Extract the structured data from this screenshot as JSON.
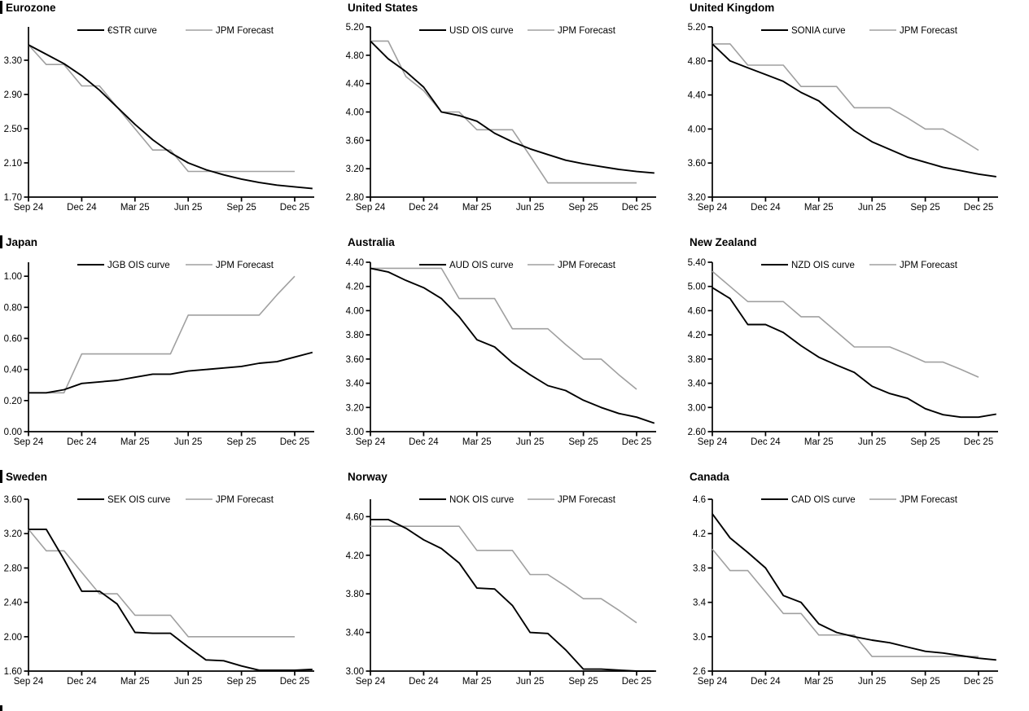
{
  "page": {
    "background": "#ffffff"
  },
  "colors": {
    "ois_line": "#000000",
    "forecast_line": "#a0a0a0",
    "axis": "#000000",
    "text": "#000000"
  },
  "x_axis": {
    "tick_labels": [
      "Sep 24",
      "Dec 24",
      "Mar 25",
      "Jun 25",
      "Sep 25",
      "Dec 25"
    ],
    "tick_months": [
      0,
      3,
      6,
      9,
      12,
      15
    ]
  },
  "legend_forecast_label": "JPM Forecast",
  "chart_data": [
    {
      "type": "line",
      "title": "Eurozone",
      "title_bar": true,
      "row": 0,
      "col": 0,
      "y_axis": {
        "min": 1.7,
        "max": 3.69,
        "tick_labels": [
          "3.30",
          "2.90",
          "2.50",
          "2.10",
          "1.70"
        ],
        "tick_values": [
          3.3,
          2.9,
          2.5,
          2.1,
          1.7
        ]
      },
      "series": [
        {
          "name": "€STR curve",
          "role": "ois",
          "values": [
            3.48,
            3.37,
            3.26,
            3.12,
            2.95,
            2.75,
            2.55,
            2.37,
            2.22,
            2.1,
            2.02,
            1.96,
            1.91,
            1.87,
            1.84,
            1.82,
            1.8
          ]
        },
        {
          "name": "JPM Forecast",
          "role": "forecast",
          "values": [
            3.48,
            3.25,
            3.25,
            3.0,
            3.0,
            2.75,
            2.5,
            2.25,
            2.25,
            2.0,
            2.0,
            2.0,
            2.0,
            2.0,
            2.0,
            2.0
          ]
        }
      ]
    },
    {
      "type": "line",
      "title": "United States",
      "title_bar": false,
      "row": 0,
      "col": 1,
      "y_axis": {
        "min": 2.8,
        "max": 5.2,
        "tick_labels": [
          "5.20",
          "4.80",
          "4.40",
          "4.00",
          "3.60",
          "3.20",
          "2.80"
        ],
        "tick_values": [
          5.2,
          4.8,
          4.4,
          4.0,
          3.6,
          3.2,
          2.8
        ]
      },
      "series": [
        {
          "name": "USD OIS curve",
          "role": "ois",
          "values": [
            5.0,
            4.75,
            4.57,
            4.35,
            4.0,
            3.95,
            3.87,
            3.7,
            3.58,
            3.48,
            3.4,
            3.32,
            3.27,
            3.23,
            3.19,
            3.16,
            3.14
          ]
        },
        {
          "name": "JPM Forecast",
          "role": "forecast",
          "values": [
            5.0,
            5.0,
            4.5,
            4.3,
            4.0,
            4.0,
            3.75,
            3.75,
            3.75,
            3.38,
            3.0,
            3.0,
            3.0,
            3.0,
            3.0,
            3.0
          ]
        }
      ]
    },
    {
      "type": "line",
      "title": "United Kingdom",
      "title_bar": false,
      "row": 0,
      "col": 2,
      "y_axis": {
        "min": 3.2,
        "max": 5.2,
        "tick_labels": [
          "5.20",
          "4.80",
          "4.40",
          "4.00",
          "3.60",
          "3.20"
        ],
        "tick_values": [
          5.2,
          4.8,
          4.4,
          4.0,
          3.6,
          3.2
        ]
      },
      "series": [
        {
          "name": "SONIA curve",
          "role": "ois",
          "values": [
            5.0,
            4.8,
            4.72,
            4.64,
            4.56,
            4.43,
            4.33,
            4.15,
            3.98,
            3.85,
            3.76,
            3.67,
            3.61,
            3.55,
            3.51,
            3.47,
            3.44
          ]
        },
        {
          "name": "JPM Forecast",
          "role": "forecast",
          "values": [
            5.0,
            5.0,
            4.75,
            4.75,
            4.75,
            4.5,
            4.5,
            4.5,
            4.25,
            4.25,
            4.25,
            4.13,
            4.0,
            4.0,
            3.88,
            3.75
          ]
        }
      ]
    },
    {
      "type": "line",
      "title": "Japan",
      "title_bar": true,
      "row": 1,
      "col": 0,
      "y_axis": {
        "min": 0.0,
        "max": 1.09,
        "tick_labels": [
          "1.00",
          "0.80",
          "0.60",
          "0.40",
          "0.20",
          "0.00"
        ],
        "tick_values": [
          1.0,
          0.8,
          0.6,
          0.4,
          0.2,
          0.0
        ]
      },
      "series": [
        {
          "name": "JGB OIS curve",
          "role": "ois",
          "values": [
            0.25,
            0.25,
            0.27,
            0.31,
            0.32,
            0.33,
            0.35,
            0.37,
            0.37,
            0.39,
            0.4,
            0.41,
            0.42,
            0.44,
            0.45,
            0.48,
            0.51
          ]
        },
        {
          "name": "JPM Forecast",
          "role": "forecast",
          "values": [
            0.25,
            0.25,
            0.25,
            0.5,
            0.5,
            0.5,
            0.5,
            0.5,
            0.5,
            0.75,
            0.75,
            0.75,
            0.75,
            0.75,
            0.88,
            1.0
          ]
        }
      ]
    },
    {
      "type": "line",
      "title": "Australia",
      "title_bar": false,
      "row": 1,
      "col": 1,
      "y_axis": {
        "min": 3.0,
        "max": 4.4,
        "tick_labels": [
          "4.40",
          "4.20",
          "4.00",
          "3.80",
          "3.60",
          "3.40",
          "3.20",
          "3.00"
        ],
        "tick_values": [
          4.4,
          4.2,
          4.0,
          3.8,
          3.6,
          3.4,
          3.2,
          3.0
        ]
      },
      "series": [
        {
          "name": "AUD OIS curve",
          "role": "ois",
          "values": [
            4.35,
            4.32,
            4.25,
            4.19,
            4.1,
            3.95,
            3.76,
            3.7,
            3.57,
            3.47,
            3.38,
            3.34,
            3.26,
            3.2,
            3.15,
            3.12,
            3.07
          ]
        },
        {
          "name": "JPM Forecast",
          "role": "forecast",
          "values": [
            4.35,
            4.35,
            4.35,
            4.35,
            4.35,
            4.1,
            4.1,
            4.1,
            3.85,
            3.85,
            3.85,
            3.72,
            3.6,
            3.6,
            3.47,
            3.35
          ]
        }
      ]
    },
    {
      "type": "line",
      "title": "New Zealand",
      "title_bar": false,
      "row": 1,
      "col": 2,
      "y_axis": {
        "min": 2.6,
        "max": 5.4,
        "tick_labels": [
          "5.40",
          "5.00",
          "4.60",
          "4.20",
          "3.80",
          "3.40",
          "3.00",
          "2.60"
        ],
        "tick_values": [
          5.4,
          5.0,
          4.6,
          4.2,
          3.8,
          3.4,
          3.0,
          2.6
        ]
      },
      "series": [
        {
          "name": "NZD OIS curve",
          "role": "ois",
          "values": [
            4.98,
            4.8,
            4.37,
            4.37,
            4.24,
            4.02,
            3.83,
            3.7,
            3.58,
            3.35,
            3.23,
            3.15,
            2.98,
            2.88,
            2.84,
            2.84,
            2.89
          ]
        },
        {
          "name": "JPM Forecast",
          "role": "forecast",
          "values": [
            5.25,
            5.0,
            4.75,
            4.75,
            4.75,
            4.5,
            4.5,
            4.25,
            4.0,
            4.0,
            4.0,
            3.88,
            3.75,
            3.75,
            3.63,
            3.5
          ]
        }
      ]
    },
    {
      "type": "line",
      "title": "Sweden",
      "title_bar": true,
      "row": 2,
      "col": 0,
      "y_axis": {
        "min": 1.6,
        "max": 3.6,
        "tick_labels": [
          "3.60",
          "3.20",
          "2.80",
          "2.40",
          "2.00",
          "1.60"
        ],
        "tick_values": [
          3.6,
          3.2,
          2.8,
          2.4,
          2.0,
          1.6
        ]
      },
      "series": [
        {
          "name": "SEK OIS curve",
          "role": "ois",
          "values": [
            3.25,
            3.25,
            2.9,
            2.53,
            2.53,
            2.38,
            2.05,
            2.04,
            2.04,
            1.88,
            1.73,
            1.72,
            1.66,
            1.61,
            1.61,
            1.61,
            1.62
          ]
        },
        {
          "name": "JPM Forecast",
          "role": "forecast",
          "values": [
            3.25,
            3.0,
            3.0,
            2.75,
            2.5,
            2.5,
            2.25,
            2.25,
            2.25,
            2.0,
            2.0,
            2.0,
            2.0,
            2.0,
            2.0,
            2.0
          ]
        }
      ]
    },
    {
      "type": "line",
      "title": "Norway",
      "title_bar": false,
      "row": 2,
      "col": 1,
      "y_axis": {
        "min": 3.0,
        "max": 4.78,
        "tick_labels": [
          "4.60",
          "4.20",
          "3.80",
          "3.40",
          "3.00"
        ],
        "tick_values": [
          4.6,
          4.2,
          3.8,
          3.4,
          3.0
        ]
      },
      "series": [
        {
          "name": "NOK OIS curve",
          "role": "ois",
          "values": [
            4.57,
            4.57,
            4.48,
            4.36,
            4.27,
            4.12,
            3.86,
            3.85,
            3.68,
            3.4,
            3.39,
            3.22,
            3.02,
            3.02,
            3.01,
            3.0,
            3.0
          ]
        },
        {
          "name": "JPM Forecast",
          "role": "forecast",
          "values": [
            4.5,
            4.5,
            4.5,
            4.5,
            4.5,
            4.5,
            4.25,
            4.25,
            4.25,
            4.0,
            4.0,
            3.88,
            3.75,
            3.75,
            3.63,
            3.5
          ]
        }
      ]
    },
    {
      "type": "line",
      "title": "Canada",
      "title_bar": false,
      "row": 2,
      "col": 2,
      "y_axis": {
        "min": 2.6,
        "max": 4.6,
        "tick_labels": [
          "4.6",
          "4.2",
          "3.8",
          "3.4",
          "3.0",
          "2.6"
        ],
        "tick_values": [
          4.6,
          4.2,
          3.8,
          3.4,
          3.0,
          2.6
        ]
      },
      "series": [
        {
          "name": "CAD OIS curve",
          "role": "ois",
          "values": [
            4.43,
            4.15,
            3.98,
            3.8,
            3.48,
            3.4,
            3.15,
            3.05,
            3.0,
            2.96,
            2.93,
            2.88,
            2.83,
            2.81,
            2.78,
            2.75,
            2.73
          ]
        },
        {
          "name": "JPM Forecast",
          "role": "forecast",
          "values": [
            4.02,
            3.77,
            3.77,
            3.52,
            3.27,
            3.27,
            3.02,
            3.02,
            3.02,
            2.77,
            2.77,
            2.77,
            2.77,
            2.77,
            2.77,
            2.77
          ]
        }
      ]
    }
  ]
}
